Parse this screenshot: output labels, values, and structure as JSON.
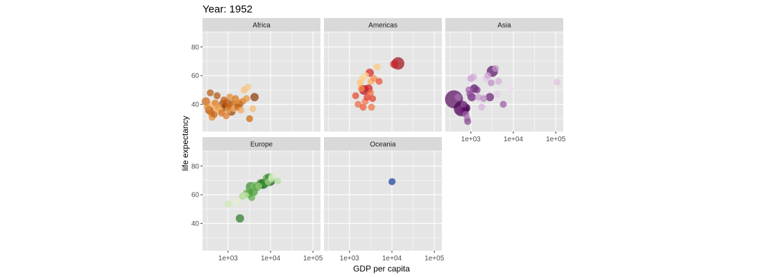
{
  "chart_data": {
    "type": "scatter",
    "title": "Year: 1952",
    "xlabel": "GDP per capita",
    "ylabel": "life expectancy",
    "x_scale": "log10",
    "xlim": [
      250,
      150000
    ],
    "ylim": [
      21,
      91
    ],
    "x_ticks": [
      1000,
      10000,
      100000
    ],
    "x_tick_labels": [
      "1e+03",
      "1e+04",
      "1e+05"
    ],
    "y_ticks": [
      40,
      60,
      80
    ],
    "y_tick_labels": [
      "40",
      "60",
      "80"
    ],
    "grid": true,
    "legend": "none",
    "colors": {
      "panel_bg": "#e5e5e5",
      "strip_bg": "#d9d9d9",
      "grid": "#ffffff"
    },
    "facets": [
      {
        "name": "Africa",
        "points": [
          {
            "x": 300,
            "y": 42,
            "s": 6,
            "c": "#cc6618"
          },
          {
            "x": 330,
            "y": 38,
            "s": 5,
            "c": "#e88a2e"
          },
          {
            "x": 360,
            "y": 36,
            "s": 6,
            "c": "#a84f0c"
          },
          {
            "x": 380,
            "y": 48,
            "s": 5,
            "c": "#b85a12"
          },
          {
            "x": 400,
            "y": 34,
            "s": 5,
            "c": "#d4741e"
          },
          {
            "x": 420,
            "y": 31,
            "s": 5,
            "c": "#e68b33"
          },
          {
            "x": 440,
            "y": 40,
            "s": 5,
            "c": "#f6b46a"
          },
          {
            "x": 470,
            "y": 33,
            "s": 5,
            "c": "#c86414"
          },
          {
            "x": 500,
            "y": 41,
            "s": 5,
            "c": "#dc7e28"
          },
          {
            "x": 520,
            "y": 37,
            "s": 5,
            "c": "#f2a558"
          },
          {
            "x": 550,
            "y": 46,
            "s": 5,
            "c": "#b65510"
          },
          {
            "x": 600,
            "y": 38,
            "s": 5,
            "c": "#e89542"
          },
          {
            "x": 650,
            "y": 36,
            "s": 5,
            "c": "#f3ad62"
          },
          {
            "x": 700,
            "y": 34,
            "s": 5,
            "c": "#d66f1a"
          },
          {
            "x": 750,
            "y": 40,
            "s": 6,
            "c": "#a74e0e"
          },
          {
            "x": 800,
            "y": 43,
            "s": 5,
            "c": "#c25c10"
          },
          {
            "x": 850,
            "y": 38,
            "s": 6,
            "c": "#8f3e08"
          },
          {
            "x": 900,
            "y": 32,
            "s": 5,
            "c": "#e07a22"
          },
          {
            "x": 950,
            "y": 41,
            "s": 6,
            "c": "#b05010"
          },
          {
            "x": 1000,
            "y": 36,
            "s": 5,
            "c": "#f0a050"
          },
          {
            "x": 1050,
            "y": 39,
            "s": 5,
            "c": "#cf6a18"
          },
          {
            "x": 1100,
            "y": 45,
            "s": 5,
            "c": "#e28a32"
          },
          {
            "x": 1200,
            "y": 35,
            "s": 6,
            "c": "#9a4509"
          },
          {
            "x": 1300,
            "y": 40,
            "s": 6,
            "c": "#b95a12"
          },
          {
            "x": 1400,
            "y": 37,
            "s": 5,
            "c": "#f4b068"
          },
          {
            "x": 1500,
            "y": 44,
            "s": 5,
            "c": "#d87420"
          },
          {
            "x": 1600,
            "y": 42,
            "s": 5,
            "c": "#e9963e"
          },
          {
            "x": 1700,
            "y": 38,
            "s": 5,
            "c": "#c4620f"
          },
          {
            "x": 1800,
            "y": 40,
            "s": 6,
            "c": "#a04a0c"
          },
          {
            "x": 2000,
            "y": 36,
            "s": 5,
            "c": "#f2a860"
          },
          {
            "x": 2200,
            "y": 42,
            "s": 5,
            "c": "#dd7a26"
          },
          {
            "x": 2400,
            "y": 50,
            "s": 5,
            "c": "#f6bf78"
          },
          {
            "x": 2700,
            "y": 44,
            "s": 5,
            "c": "#e6933a"
          },
          {
            "x": 2900,
            "y": 52,
            "s": 5,
            "c": "#f8c888"
          },
          {
            "x": 3200,
            "y": 30,
            "s": 5,
            "c": "#c8680f"
          },
          {
            "x": 3800,
            "y": 37,
            "s": 5,
            "c": "#f6bb74"
          },
          {
            "x": 4200,
            "y": 45,
            "s": 6,
            "c": "#8c3d08"
          }
        ]
      },
      {
        "name": "Americas",
        "points": [
          {
            "x": 1400,
            "y": 46,
            "s": 5,
            "c": "#e8462c"
          },
          {
            "x": 1600,
            "y": 40,
            "s": 5,
            "c": "#ef6a40"
          },
          {
            "x": 1800,
            "y": 55,
            "s": 5,
            "c": "#fdc06a"
          },
          {
            "x": 1900,
            "y": 51,
            "s": 5,
            "c": "#f78a48"
          },
          {
            "x": 2000,
            "y": 58,
            "s": 5,
            "c": "#fdd08a"
          },
          {
            "x": 2100,
            "y": 38,
            "s": 5,
            "c": "#ee5a34"
          },
          {
            "x": 2200,
            "y": 50,
            "s": 7,
            "c": "#b00d1e"
          },
          {
            "x": 2350,
            "y": 42,
            "s": 5,
            "c": "#f0764a"
          },
          {
            "x": 2400,
            "y": 60,
            "s": 5,
            "c": "#fed495"
          },
          {
            "x": 2600,
            "y": 45,
            "s": 5,
            "c": "#e53a2a"
          },
          {
            "x": 2800,
            "y": 51,
            "s": 6,
            "c": "#cc1a20"
          },
          {
            "x": 3000,
            "y": 62,
            "s": 6,
            "c": "#d42a24"
          },
          {
            "x": 3100,
            "y": 48,
            "s": 5,
            "c": "#f46a3c"
          },
          {
            "x": 3200,
            "y": 56,
            "s": 5,
            "c": "#fbab5a"
          },
          {
            "x": 3300,
            "y": 38,
            "s": 5,
            "c": "#f07244"
          },
          {
            "x": 3500,
            "y": 44,
            "s": 5,
            "c": "#e33d28"
          },
          {
            "x": 3800,
            "y": 58,
            "s": 5,
            "c": "#f58e4e"
          },
          {
            "x": 4500,
            "y": 66,
            "s": 5,
            "c": "#fdca7a"
          },
          {
            "x": 5000,
            "y": 56,
            "s": 5,
            "c": "#ea4f32"
          },
          {
            "x": 11400,
            "y": 68,
            "s": 6,
            "c": "#c82428"
          },
          {
            "x": 13990,
            "y": 68.5,
            "s": 9,
            "c": "#a3101c"
          }
        ]
      },
      {
        "name": "Asia",
        "points": [
          {
            "x": 400,
            "y": 43.5,
            "s": 13,
            "c": "#5a0f62"
          },
          {
            "x": 600,
            "y": 37,
            "s": 11,
            "c": "#45064f"
          },
          {
            "x": 550,
            "y": 36,
            "s": 6,
            "c": "#7a2e82"
          },
          {
            "x": 700,
            "y": 36,
            "s": 6,
            "c": "#6a1a72"
          },
          {
            "x": 780,
            "y": 37.5,
            "s": 6,
            "c": "#4a0852"
          },
          {
            "x": 500,
            "y": 45,
            "s": 5,
            "c": "#a870b2"
          },
          {
            "x": 680,
            "y": 40,
            "s": 5,
            "c": "#8a4694"
          },
          {
            "x": 760,
            "y": 33,
            "s": 5,
            "c": "#9e5ea8"
          },
          {
            "x": 820,
            "y": 30,
            "s": 5,
            "c": "#b07ab8"
          },
          {
            "x": 840,
            "y": 28,
            "s": 5,
            "c": "#8c4a96"
          },
          {
            "x": 900,
            "y": 50,
            "s": 5,
            "c": "#a262ab"
          },
          {
            "x": 950,
            "y": 47,
            "s": 5,
            "c": "#8e4c98"
          },
          {
            "x": 1000,
            "y": 58,
            "s": 5,
            "c": "#c99ad0"
          },
          {
            "x": 1050,
            "y": 45,
            "s": 6,
            "c": "#6c207a"
          },
          {
            "x": 1150,
            "y": 59,
            "s": 5,
            "c": "#d4acd8"
          },
          {
            "x": 1200,
            "y": 51,
            "s": 6,
            "c": "#5a106a"
          },
          {
            "x": 1400,
            "y": 50,
            "s": 5,
            "c": "#7a3486"
          },
          {
            "x": 1500,
            "y": 45,
            "s": 5,
            "c": "#caa0d0"
          },
          {
            "x": 1800,
            "y": 38,
            "s": 5,
            "c": "#d8b4dc"
          },
          {
            "x": 2000,
            "y": 44,
            "s": 5,
            "c": "#b58abd"
          },
          {
            "x": 2300,
            "y": 58,
            "s": 5,
            "c": "#e3c6e6"
          },
          {
            "x": 2500,
            "y": 60,
            "s": 5,
            "c": "#d0a8d6"
          },
          {
            "x": 2800,
            "y": 45,
            "s": 6,
            "c": "#6a2276"
          },
          {
            "x": 3000,
            "y": 55,
            "s": 5,
            "c": "#bd8fc4"
          },
          {
            "x": 3200,
            "y": 63,
            "s": 8,
            "c": "#5a1468"
          },
          {
            "x": 3800,
            "y": 65,
            "s": 5,
            "c": "#c496ca"
          },
          {
            "x": 4200,
            "y": 47,
            "s": 5,
            "c": "#e6cde8"
          },
          {
            "x": 4500,
            "y": 56,
            "s": 5,
            "c": "#d4aed8"
          },
          {
            "x": 5800,
            "y": 40,
            "s": 5,
            "c": "#9a5aa4"
          },
          {
            "x": 8500,
            "y": 51,
            "s": 5,
            "c": "#eedcee"
          },
          {
            "x": 108000,
            "y": 55.5,
            "s": 5,
            "c": "#e0c4e2"
          }
        ]
      },
      {
        "name": "Europe",
        "points": [
          {
            "x": 1000,
            "y": 53.5,
            "s": 5,
            "c": "#cdeab0"
          },
          {
            "x": 1600,
            "y": 55,
            "s": 5,
            "c": "#e2f3cc"
          },
          {
            "x": 1900,
            "y": 43.5,
            "s": 6,
            "c": "#2e7a2a"
          },
          {
            "x": 2200,
            "y": 59,
            "s": 5,
            "c": "#a6d88a"
          },
          {
            "x": 2600,
            "y": 59.5,
            "s": 5,
            "c": "#c6e6aa"
          },
          {
            "x": 2800,
            "y": 61,
            "s": 6,
            "c": "#6fba58"
          },
          {
            "x": 3100,
            "y": 60.5,
            "s": 6,
            "c": "#4fa040"
          },
          {
            "x": 3400,
            "y": 65.5,
            "s": 7,
            "c": "#3a8c34"
          },
          {
            "x": 3600,
            "y": 58,
            "s": 5,
            "c": "#62b04e"
          },
          {
            "x": 4000,
            "y": 62,
            "s": 6,
            "c": "#4a9c3c"
          },
          {
            "x": 4200,
            "y": 66,
            "s": 6,
            "c": "#7bc266"
          },
          {
            "x": 4800,
            "y": 65.5,
            "s": 6,
            "c": "#5aa848"
          },
          {
            "x": 5300,
            "y": 66,
            "s": 5,
            "c": "#90cc76"
          },
          {
            "x": 6000,
            "y": 67.5,
            "s": 7,
            "c": "#2f7f2b"
          },
          {
            "x": 6800,
            "y": 67.5,
            "s": 7,
            "c": "#1e6a20"
          },
          {
            "x": 7500,
            "y": 68,
            "s": 6,
            "c": "#3e923a"
          },
          {
            "x": 8200,
            "y": 71.5,
            "s": 6,
            "c": "#56a446"
          },
          {
            "x": 8800,
            "y": 69,
            "s": 5,
            "c": "#a2d488"
          },
          {
            "x": 9300,
            "y": 72,
            "s": 6,
            "c": "#3a8a36"
          },
          {
            "x": 9800,
            "y": 69.5,
            "s": 7,
            "c": "#1b5e1c"
          },
          {
            "x": 10500,
            "y": 71,
            "s": 5,
            "c": "#c8e8ae"
          },
          {
            "x": 10800,
            "y": 72.5,
            "s": 5,
            "c": "#daf0c4"
          },
          {
            "x": 14700,
            "y": 69.5,
            "s": 5,
            "c": "#b4de98"
          }
        ]
      },
      {
        "name": "Oceania",
        "points": [
          {
            "x": 10040,
            "y": 69.1,
            "s": 5,
            "c": "#253494"
          },
          {
            "x": 10560,
            "y": 69.4,
            "s": 4,
            "c": "#4a7ab8"
          }
        ]
      }
    ]
  }
}
